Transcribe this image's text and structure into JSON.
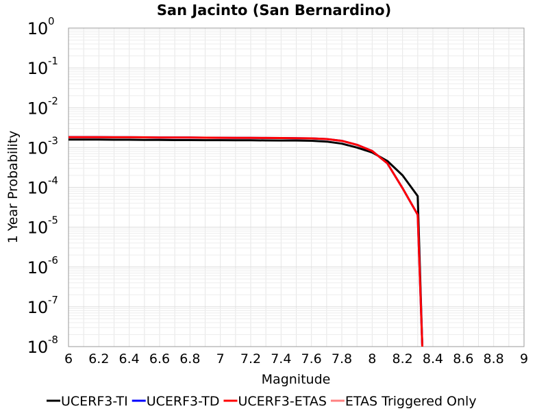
{
  "chart_data": {
    "type": "line",
    "title": "San Jacinto (San Bernardino)",
    "xlabel": "Magnitude",
    "ylabel": "1 Year Probability",
    "xlim": [
      6,
      9
    ],
    "ylim": [
      1e-08,
      1
    ],
    "yscale": "log",
    "grid": true,
    "legend_position": "bottom",
    "x_ticks": [
      "6",
      "6.2",
      "6.4",
      "6.6",
      "6.8",
      "7",
      "7.2",
      "7.4",
      "7.6",
      "7.8",
      "8",
      "8.2",
      "8.4",
      "8.6",
      "8.8",
      "9"
    ],
    "y_ticks": [
      {
        "base": "10",
        "exp": "0"
      },
      {
        "base": "10",
        "exp": "-1"
      },
      {
        "base": "10",
        "exp": "-2"
      },
      {
        "base": "10",
        "exp": "-3"
      },
      {
        "base": "10",
        "exp": "-4"
      },
      {
        "base": "10",
        "exp": "-5"
      },
      {
        "base": "10",
        "exp": "-6"
      },
      {
        "base": "10",
        "exp": "-7"
      },
      {
        "base": "10",
        "exp": "-8"
      }
    ],
    "series": [
      {
        "name": "UCERF3-TI",
        "color": "#000000",
        "x": [
          6.0,
          6.1,
          6.2,
          6.3,
          6.4,
          6.5,
          6.6,
          6.7,
          6.8,
          6.9,
          7.0,
          7.1,
          7.2,
          7.3,
          7.4,
          7.5,
          7.6,
          7.7,
          7.8,
          7.9,
          8.0,
          8.1,
          8.2,
          8.3,
          8.33
        ],
        "y": [
          0.00158,
          0.00158,
          0.00158,
          0.00157,
          0.00157,
          0.00155,
          0.00155,
          0.00154,
          0.00154,
          0.00153,
          0.00153,
          0.00152,
          0.00152,
          0.00151,
          0.0015,
          0.0015,
          0.00148,
          0.00141,
          0.00125,
          0.001,
          0.00075,
          0.00046,
          0.0002,
          6.05e-05,
          1e-08
        ]
      },
      {
        "name": "UCERF3-TD",
        "color": "#0000ff",
        "x": [
          6.0,
          6.1,
          6.2,
          6.3,
          6.4,
          6.5,
          6.6,
          6.7,
          6.8,
          6.9,
          7.0,
          7.1,
          7.2,
          7.3,
          7.4,
          7.5,
          7.6,
          7.7,
          7.8,
          7.9,
          8.0,
          8.1,
          8.2,
          8.3,
          8.33
        ],
        "y": [
          0.00182,
          0.00182,
          0.00182,
          0.00181,
          0.00181,
          0.0018,
          0.00179,
          0.00178,
          0.00178,
          0.00177,
          0.00176,
          0.00175,
          0.00175,
          0.00174,
          0.00173,
          0.00172,
          0.0017,
          0.00163,
          0.00147,
          0.00117,
          0.00082,
          0.0004,
          9.5e-05,
          2.05e-05,
          1e-08
        ]
      },
      {
        "name": "UCERF3-ETAS",
        "color": "#ff0000",
        "x": [
          6.0,
          6.1,
          6.2,
          6.3,
          6.4,
          6.5,
          6.6,
          6.7,
          6.8,
          6.9,
          7.0,
          7.1,
          7.2,
          7.3,
          7.4,
          7.5,
          7.6,
          7.7,
          7.8,
          7.9,
          8.0,
          8.1,
          8.2,
          8.3,
          8.33
        ],
        "y": [
          0.00182,
          0.00182,
          0.00182,
          0.00181,
          0.00181,
          0.0018,
          0.00179,
          0.00178,
          0.00178,
          0.00177,
          0.00176,
          0.00175,
          0.00175,
          0.00174,
          0.00173,
          0.00172,
          0.0017,
          0.00163,
          0.00147,
          0.00117,
          0.00082,
          0.0004,
          9.5e-05,
          2.05e-05,
          1e-08
        ]
      },
      {
        "name": "ETAS Triggered Only",
        "color": "#ff8080",
        "x": [],
        "y": []
      }
    ]
  }
}
